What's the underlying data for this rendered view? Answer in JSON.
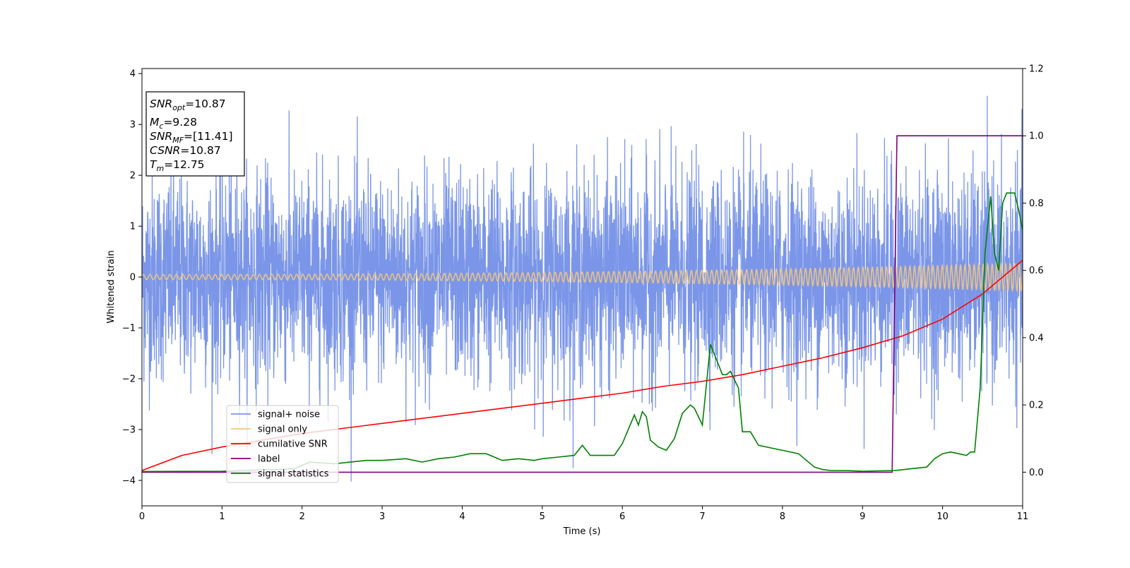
{
  "chart_data": {
    "type": "line",
    "xlabel": "Time (s)",
    "ylabel": "Whitened strain",
    "xlim": [
      0,
      11
    ],
    "ylim": [
      -4.5,
      4.1
    ],
    "y2lim": [
      -0.1,
      1.2
    ],
    "x_ticks": [
      "0",
      "1",
      "2",
      "3",
      "4",
      "5",
      "6",
      "7",
      "8",
      "9",
      "10",
      "11"
    ],
    "y_ticks": [
      "−4",
      "−3",
      "−2",
      "−1",
      "0",
      "1",
      "2",
      "3",
      "4"
    ],
    "y2_ticks": [
      "0.0",
      "0.2",
      "0.4",
      "0.6",
      "0.8",
      "1.0",
      "1.2"
    ],
    "grid": false,
    "legend_position": "lower-left",
    "info_box": {
      "position": "top-left",
      "lines": [
        {
          "label": "SNR",
          "sub": "opt",
          "value": "=10.87"
        },
        {
          "label": "M",
          "sub": "c",
          "value": "=9.28"
        },
        {
          "label": "SNR",
          "sub": "MF",
          "value": "=[11.41]"
        },
        {
          "label": "CSNR",
          "sub": "",
          "value": "=10.87"
        },
        {
          "label": "T",
          "sub": "m",
          "value": "=12.75"
        }
      ]
    },
    "series": [
      {
        "name": "signal+ noise",
        "axis": "left",
        "color": "#7b96e8",
        "kind": "noise",
        "std": 1.0,
        "x_range": [
          0,
          11
        ]
      },
      {
        "name": "signal only",
        "axis": "left",
        "color": "#f5c77a",
        "kind": "chirp",
        "amplitude_start": 0.05,
        "amplitude_end": 0.27,
        "x_range": [
          0,
          11
        ]
      },
      {
        "name": "cumilative SNR",
        "axis": "right",
        "color": "#ff0000",
        "x": [
          0,
          0.5,
          1,
          1.5,
          2,
          2.5,
          3,
          3.5,
          4,
          4.5,
          5,
          5.5,
          6,
          6.5,
          7,
          7.5,
          8,
          8.5,
          9,
          9.5,
          10,
          10.5,
          11
        ],
        "values": [
          0.005,
          0.05,
          0.075,
          0.095,
          0.115,
          0.13,
          0.145,
          0.16,
          0.175,
          0.19,
          0.205,
          0.22,
          0.235,
          0.255,
          0.27,
          0.29,
          0.315,
          0.34,
          0.37,
          0.405,
          0.455,
          0.53,
          0.63
        ]
      },
      {
        "name": "label",
        "axis": "right",
        "color": "#800080",
        "x": [
          0,
          9.37,
          9.43,
          11
        ],
        "values": [
          0,
          0,
          1,
          1
        ]
      },
      {
        "name": "signal statistics",
        "axis": "right",
        "color": "#008000",
        "x": [
          0,
          1,
          1.9,
          2.1,
          2.4,
          2.6,
          2.8,
          3,
          3.3,
          3.5,
          3.7,
          3.9,
          4.1,
          4.3,
          4.5,
          4.7,
          4.9,
          5,
          5.2,
          5.4,
          5.5,
          5.6,
          5.7,
          5.9,
          6,
          6.15,
          6.2,
          6.25,
          6.3,
          6.35,
          6.45,
          6.55,
          6.65,
          6.75,
          6.85,
          6.9,
          7,
          7.1,
          7.15,
          7.25,
          7.3,
          7.35,
          7.45,
          7.5,
          7.6,
          7.7,
          7.9,
          8,
          8.2,
          8.3,
          8.4,
          8.5,
          8.6,
          8.8,
          9,
          9.4,
          9.6,
          9.8,
          9.9,
          10,
          10.1,
          10.2,
          10.3,
          10.35,
          10.4,
          10.47,
          10.53,
          10.6,
          10.65,
          10.7,
          10.75,
          10.8,
          10.9,
          10.95,
          11
        ],
        "values": [
          0.002,
          0.003,
          0.01,
          0.03,
          0.025,
          0.03,
          0.035,
          0.035,
          0.04,
          0.03,
          0.04,
          0.045,
          0.055,
          0.055,
          0.035,
          0.04,
          0.035,
          0.04,
          0.045,
          0.05,
          0.08,
          0.05,
          0.05,
          0.05,
          0.085,
          0.17,
          0.14,
          0.18,
          0.165,
          0.095,
          0.075,
          0.065,
          0.1,
          0.175,
          0.2,
          0.19,
          0.14,
          0.38,
          0.35,
          0.29,
          0.29,
          0.3,
          0.25,
          0.12,
          0.12,
          0.08,
          0.07,
          0.065,
          0.055,
          0.035,
          0.015,
          0.008,
          0.005,
          0.005,
          0.003,
          0.005,
          0.01,
          0.015,
          0.04,
          0.055,
          0.06,
          0.055,
          0.05,
          0.06,
          0.06,
          0.25,
          0.65,
          0.82,
          0.65,
          0.6,
          0.8,
          0.83,
          0.83,
          0.78,
          0.72
        ]
      }
    ]
  }
}
